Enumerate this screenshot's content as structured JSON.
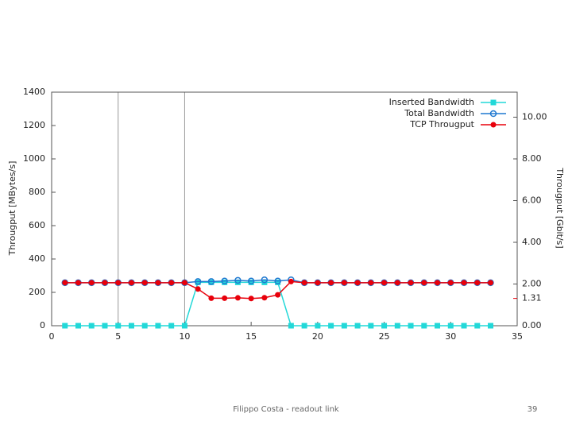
{
  "chart_data": {
    "type": "line",
    "ylabel": "Througput [MBytes/s]",
    "y2label": "Througput [Gbit/s]",
    "x": [
      1,
      2,
      3,
      4,
      5,
      6,
      7,
      8,
      9,
      10,
      11,
      12,
      13,
      14,
      15,
      16,
      17,
      18,
      19,
      20,
      21,
      22,
      23,
      24,
      25,
      26,
      27,
      28,
      29,
      30,
      31,
      32,
      33
    ],
    "series": [
      {
        "name": "Inserted Bandwidth",
        "color": "#22d8d8",
        "marker": "square",
        "values": [
          0,
          0,
          0,
          0,
          0,
          0,
          0,
          0,
          0,
          0,
          260,
          260,
          260,
          260,
          260,
          260,
          260,
          0,
          0,
          0,
          0,
          0,
          0,
          0,
          0,
          0,
          0,
          0,
          0,
          0,
          0,
          0,
          0
        ]
      },
      {
        "name": "Total Bandwidth",
        "color": "#1f78d0",
        "marker": "circle-open",
        "values": [
          258,
          258,
          258,
          258,
          258,
          258,
          258,
          258,
          258,
          258,
          265,
          265,
          268,
          272,
          268,
          275,
          268,
          275,
          258,
          258,
          258,
          258,
          258,
          258,
          258,
          258,
          258,
          258,
          258,
          258,
          258,
          258,
          258
        ]
      },
      {
        "name": "TCP Througput",
        "color": "#e8000b",
        "marker": "circle",
        "values": [
          258,
          258,
          258,
          258,
          258,
          258,
          258,
          258,
          258,
          258,
          220,
          165,
          165,
          167,
          163,
          168,
          185,
          265,
          258,
          258,
          258,
          258,
          258,
          258,
          258,
          258,
          258,
          258,
          258,
          258,
          258,
          258,
          258
        ]
      }
    ],
    "xlim": [
      0,
      35
    ],
    "xticks": [
      0,
      5,
      10,
      15,
      20,
      25,
      30,
      35
    ],
    "xgrid": [
      5,
      10
    ],
    "ylim": [
      0,
      1400
    ],
    "yticks": [
      0,
      200,
      400,
      600,
      800,
      1000,
      1200,
      1400
    ],
    "y2lim": [
      0,
      11.2
    ],
    "y2ticks": [
      {
        "value": 0,
        "label": "0.00"
      },
      {
        "value": 2,
        "label": "2.00"
      },
      {
        "value": 4,
        "label": "4.00"
      },
      {
        "value": 6,
        "label": "6.00"
      },
      {
        "value": 8,
        "label": "8.00"
      },
      {
        "value": 10,
        "label": "10.00"
      }
    ],
    "y2_marker": {
      "value": 1.31,
      "color": "#e8000b"
    }
  },
  "footer": {
    "text": "Filippo Costa - readout link",
    "page": "39"
  }
}
